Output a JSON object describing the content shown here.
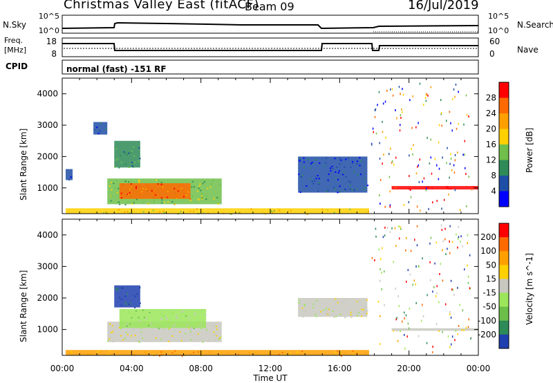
{
  "header": {
    "title": "Christmas Valley East (fitACF)",
    "beam": "Beam 09",
    "date": "16/Jul/2019"
  },
  "panels": {
    "nsky": {
      "left_label": "N.Sky",
      "right_label": "N.Search",
      "left_ticks": [
        "10^5",
        "10^0"
      ],
      "right_ticks": [
        "10^5",
        "10^0"
      ]
    },
    "freq": {
      "left_label_1": "Freq.",
      "left_label_2": "[MHz]",
      "right_label": "Nave",
      "left_ticks": [
        "18",
        "8"
      ],
      "right_ticks": [
        "60",
        "0"
      ]
    },
    "cpid": {
      "label": "CPID",
      "value": "normal (fast) -151 RF"
    }
  },
  "chart_data": [
    {
      "type": "heatmap",
      "title": "",
      "xlabel": "Time UT",
      "ylabel": "Slant Range [km]",
      "x_ticks": [
        "00:00",
        "04:00",
        "08:00",
        "12:00",
        "16:00",
        "20:00",
        "00:00"
      ],
      "y_ticks": [
        "1000",
        "2000",
        "3000",
        "4000"
      ],
      "xlim_hours": [
        0,
        24
      ],
      "ylim_km": [
        180,
        4500
      ],
      "colorbar": {
        "label": "Power [dB]",
        "ticks": [
          "4",
          "8",
          "12",
          "16",
          "20",
          "24",
          "28"
        ],
        "colors": [
          "#0000ff",
          "#1f4ea6",
          "#2e8b57",
          "#6fbf4a",
          "#ffd000",
          "#ffa000",
          "#ff6a00",
          "#ff0000"
        ]
      },
      "regions": [
        {
          "t0": 0.2,
          "t1": 17.7,
          "r0": 180,
          "r1": 350,
          "level": 4
        },
        {
          "t0": 2.6,
          "t1": 9.2,
          "r0": 480,
          "r1": 1300,
          "level": 3
        },
        {
          "t0": 3.3,
          "t1": 7.4,
          "r0": 650,
          "r1": 1150,
          "level": 6
        },
        {
          "t0": 3.0,
          "t1": 4.5,
          "r0": 1650,
          "r1": 2500,
          "level": 2
        },
        {
          "t0": 13.6,
          "t1": 17.6,
          "r0": 850,
          "r1": 2000,
          "level": 1
        },
        {
          "t0": 19.0,
          "t1": 24.0,
          "r0": 950,
          "r1": 1060,
          "level": 7
        },
        {
          "t0": 0.2,
          "t1": 0.6,
          "r0": 1250,
          "r1": 1600,
          "level": 1
        },
        {
          "t0": 1.8,
          "t1": 2.6,
          "r0": 2700,
          "r1": 3100,
          "level": 1
        }
      ]
    },
    {
      "type": "heatmap",
      "title": "",
      "xlabel": "Time UT",
      "ylabel": "Slant Range [km]",
      "x_ticks": [
        "00:00",
        "04:00",
        "08:00",
        "12:00",
        "16:00",
        "20:00",
        "00:00"
      ],
      "y_ticks": [
        "1000",
        "2000",
        "3000",
        "4000"
      ],
      "xlim_hours": [
        0,
        24
      ],
      "ylim_km": [
        180,
        4500
      ],
      "colorbar": {
        "label": "Velocity [m s^-1]",
        "ticks": [
          "200",
          "100",
          "50",
          "15",
          "-15",
          "-50",
          "-100",
          "-200"
        ],
        "colors": [
          "#1f3fae",
          "#2e8b57",
          "#6cc04a",
          "#9be65a",
          "#c8c8c0",
          "#ffd000",
          "#ffa000",
          "#ff6a00",
          "#ff0000"
        ]
      },
      "regions": [
        {
          "t0": 0.2,
          "t1": 17.7,
          "r0": 180,
          "r1": 350,
          "level": 6
        },
        {
          "t0": 2.6,
          "t1": 9.2,
          "r0": 600,
          "r1": 1250,
          "level": 4
        },
        {
          "t0": 3.3,
          "t1": 8.3,
          "r0": 1050,
          "r1": 1650,
          "level": 3
        },
        {
          "t0": 3.0,
          "t1": 4.5,
          "r0": 1700,
          "r1": 2400,
          "level": 0
        },
        {
          "t0": 13.6,
          "t1": 17.6,
          "r0": 1400,
          "r1": 2000,
          "level": 4
        },
        {
          "t0": 19.0,
          "t1": 24.0,
          "r0": 960,
          "r1": 1040,
          "level": 4
        }
      ]
    }
  ]
}
